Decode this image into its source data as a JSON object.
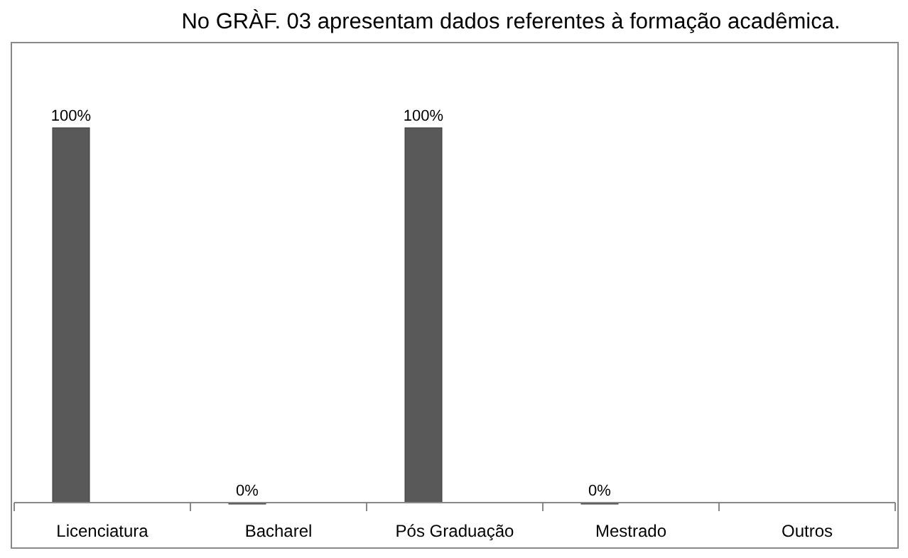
{
  "chart_data": {
    "type": "bar",
    "title": "No GRÀF. 03 apresentam dados referentes à formação acadêmica.",
    "categories": [
      "Licenciatura",
      "Bacharel",
      "Pós Graduação",
      "Mestrado",
      "Outros"
    ],
    "values": [
      100,
      0,
      100,
      0,
      null
    ],
    "value_labels": [
      "100%",
      "0%",
      "100%",
      "0%",
      null
    ],
    "color": "#595959",
    "ylim": [
      0,
      100
    ]
  }
}
